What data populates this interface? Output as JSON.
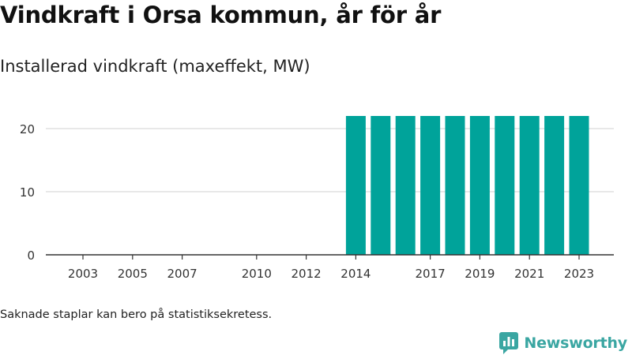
{
  "header": {
    "title": "Vindkraft i Orsa kommun, år för år",
    "subtitle": "Installerad vindkraft (maxeffekt, MW)"
  },
  "footnote": "Saknade staplar kan bero på statistiksekretess.",
  "brand": {
    "name": "Newsworthy",
    "color": "#3aa6a2"
  },
  "chart_data": {
    "type": "bar",
    "categories": [
      "2002",
      "2003",
      "2004",
      "2005",
      "2006",
      "2007",
      "2008",
      "2009",
      "2010",
      "2011",
      "2012",
      "2013",
      "2014",
      "2015",
      "2016",
      "2017",
      "2018",
      "2019",
      "2020",
      "2021",
      "2022",
      "2023"
    ],
    "values": [
      0,
      0,
      0,
      0,
      0,
      0,
      0,
      0,
      0,
      0,
      0,
      0,
      22,
      22,
      22,
      22,
      22,
      22,
      22,
      22,
      22,
      22
    ],
    "x_tick_labels": [
      "2003",
      "2005",
      "2007",
      "2010",
      "2012",
      "2014",
      "2017",
      "2019",
      "2021",
      "2023"
    ],
    "y_ticks": [
      0,
      10,
      20
    ],
    "ylim": [
      0,
      23
    ],
    "title": "Vindkraft i Orsa kommun, år för år",
    "subtitle": "Installerad vindkraft (maxeffekt, MW)",
    "xlabel": "",
    "ylabel": "",
    "grid": true,
    "legend": "none",
    "bar_color": "#00a39a",
    "grid_color": "#d9d9d9",
    "axis_color": "#333333"
  }
}
